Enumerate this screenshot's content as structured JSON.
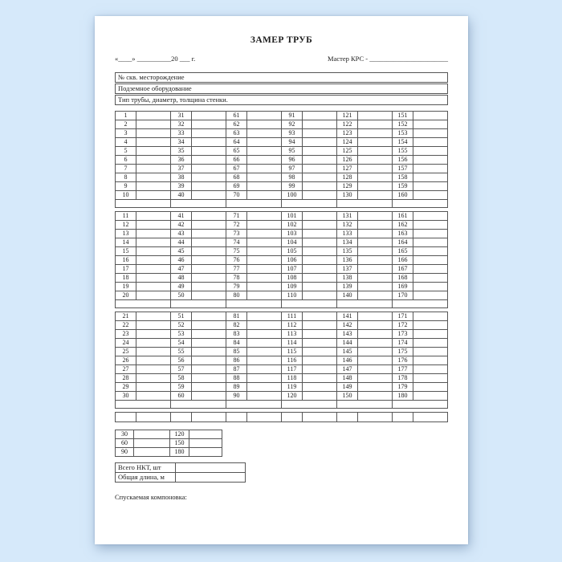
{
  "header": {
    "title": "ЗАМЕР ТРУБ",
    "date_line": "«____» __________20 ___ г.",
    "master_line": "Мастер КРС - _______________________"
  },
  "info_rows": [
    "№ скв. месторождение",
    "Подземное оборудование",
    "Тип трубы, диаметр, толщина стенки."
  ],
  "main_table": {
    "description": "numbered pipe measurement grid, value cells blank",
    "blocks": [
      {
        "rows": [
          [
            1,
            31,
            61,
            91,
            121,
            151
          ],
          [
            2,
            32,
            62,
            92,
            122,
            152
          ],
          [
            3,
            33,
            63,
            93,
            123,
            153
          ],
          [
            4,
            34,
            64,
            94,
            124,
            154
          ],
          [
            5,
            35,
            65,
            95,
            125,
            155
          ],
          [
            6,
            36,
            66,
            96,
            126,
            156
          ],
          [
            7,
            37,
            67,
            97,
            127,
            157
          ],
          [
            8,
            38,
            68,
            98,
            128,
            158
          ],
          [
            9,
            39,
            69,
            99,
            129,
            159
          ],
          [
            10,
            40,
            70,
            100,
            130,
            160
          ]
        ]
      },
      {
        "rows": [
          [
            11,
            41,
            71,
            101,
            131,
            161
          ],
          [
            12,
            42,
            72,
            102,
            132,
            162
          ],
          [
            13,
            43,
            73,
            103,
            133,
            163
          ],
          [
            14,
            44,
            74,
            104,
            134,
            164
          ],
          [
            15,
            45,
            75,
            105,
            135,
            165
          ],
          [
            16,
            46,
            76,
            106,
            136,
            166
          ],
          [
            17,
            47,
            77,
            107,
            137,
            167
          ],
          [
            18,
            48,
            78,
            108,
            138,
            168
          ],
          [
            19,
            49,
            79,
            109,
            139,
            169
          ],
          [
            20,
            50,
            80,
            110,
            140,
            170
          ]
        ]
      },
      {
        "rows": [
          [
            21,
            51,
            81,
            111,
            141,
            171
          ],
          [
            22,
            52,
            82,
            112,
            142,
            172
          ],
          [
            23,
            53,
            83,
            113,
            143,
            173
          ],
          [
            24,
            54,
            84,
            114,
            144,
            174
          ],
          [
            25,
            55,
            85,
            115,
            145,
            175
          ],
          [
            26,
            56,
            86,
            116,
            146,
            176
          ],
          [
            27,
            57,
            87,
            117,
            147,
            177
          ],
          [
            28,
            58,
            88,
            118,
            148,
            178
          ],
          [
            29,
            59,
            89,
            119,
            149,
            179
          ],
          [
            30,
            60,
            90,
            120,
            150,
            180
          ]
        ]
      }
    ]
  },
  "summary_table": {
    "rows": [
      [
        "30",
        "",
        "120",
        ""
      ],
      [
        "60",
        "",
        "150",
        ""
      ],
      [
        "90",
        "",
        "180",
        ""
      ]
    ]
  },
  "totals_table": {
    "rows": [
      {
        "label": "Всего НКТ, шт",
        "value": ""
      },
      {
        "label": "Общая длина, м",
        "value": ""
      }
    ]
  },
  "footer": {
    "label": "Спускаемая компоновка:"
  },
  "colors": {
    "background": "#d6e9fa",
    "paper": "#ffffff",
    "border": "#565656",
    "text": "#1c1c1c"
  }
}
